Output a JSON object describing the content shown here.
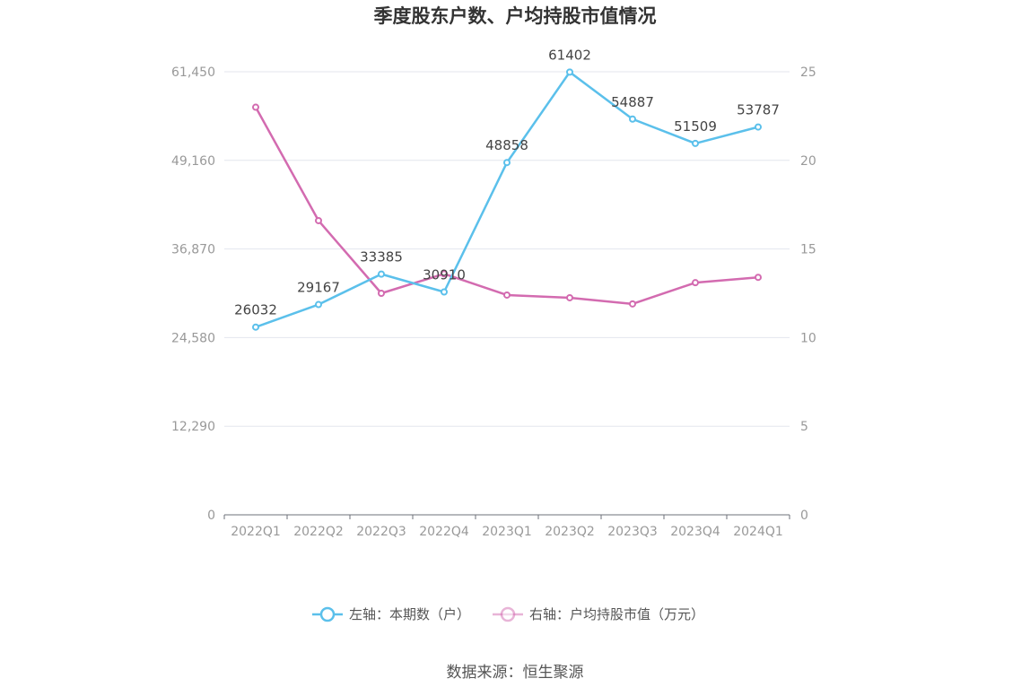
{
  "chart_data": {
    "type": "line",
    "title": "季度股东户数、户均持股市值情况",
    "categories": [
      "2022Q1",
      "2022Q2",
      "2022Q3",
      "2022Q4",
      "2023Q1",
      "2023Q2",
      "2023Q3",
      "2023Q4",
      "2024Q1"
    ],
    "left_axis": {
      "ticks": [
        "0",
        "12,290",
        "24,580",
        "36,870",
        "49,160",
        "61,450"
      ],
      "ylim": [
        0,
        61450
      ]
    },
    "right_axis": {
      "ticks": [
        "0",
        "5",
        "10",
        "15",
        "20",
        "25"
      ],
      "ylim": [
        0,
        25
      ]
    },
    "series": [
      {
        "name": "左轴：本期数（户）",
        "axis": "left",
        "color": "#5bc0eb",
        "values": [
          26032,
          29167,
          33385,
          30910,
          48858,
          61402,
          54887,
          51509,
          53787
        ],
        "labels": [
          "26032",
          "29167",
          "33385",
          "30910",
          "48858",
          "61402",
          "54887",
          "51509",
          "53787"
        ]
      },
      {
        "name": "右轴：户均持股市值（万元）",
        "axis": "right",
        "color": "#d36bb0",
        "values": [
          23.0,
          16.6,
          12.5,
          13.6,
          12.4,
          12.25,
          11.9,
          13.1,
          13.4
        ]
      }
    ],
    "grid": true,
    "legend": "bottom"
  },
  "source": "数据来源：恒生聚源"
}
